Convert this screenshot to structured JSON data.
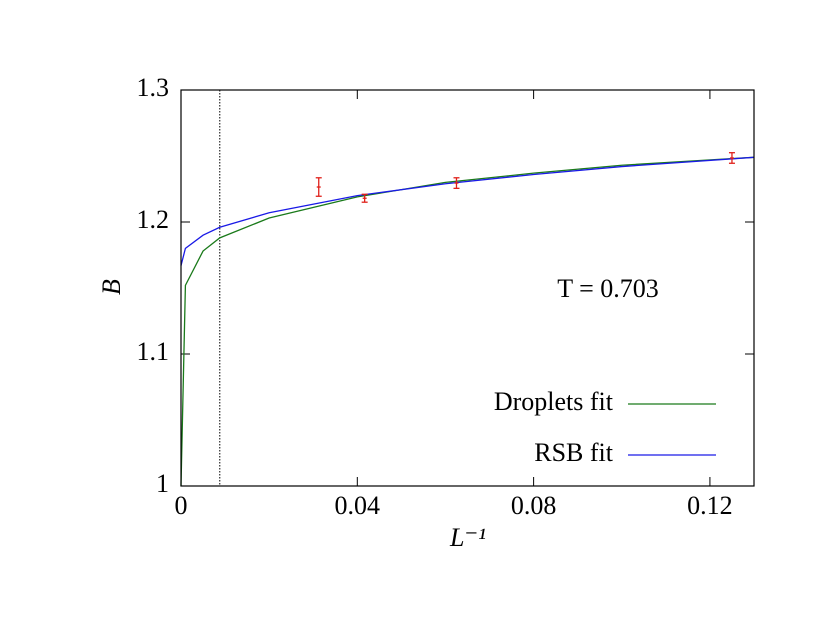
{
  "chart_data": {
    "type": "line",
    "x_label": "L⁻¹",
    "y_label": "B",
    "annotation": "T = 0.703",
    "xlim": [
      0,
      0.13
    ],
    "ylim": [
      1,
      1.3
    ],
    "xticks": [
      0,
      0.04,
      0.08,
      0.12
    ],
    "yticks": [
      1,
      1.1,
      1.2,
      1.3
    ],
    "x": [
      0,
      0.001,
      0.005,
      0.0088,
      0.02,
      0.04,
      0.06,
      0.08,
      0.1,
      0.13
    ],
    "series": [
      {
        "name": "Droplets fit",
        "color": "#1a7a1a",
        "values": [
          1.0,
          1.152,
          1.178,
          1.188,
          1.203,
          1.219,
          1.23,
          1.237,
          1.243,
          1.249
        ]
      },
      {
        "name": "RSB fit",
        "color": "#1a1ae6",
        "values": [
          1.167,
          1.18,
          1.19,
          1.196,
          1.207,
          1.22,
          1.229,
          1.236,
          1.242,
          1.249
        ]
      }
    ],
    "points": {
      "color": "#e0201a",
      "x": [
        0.03125,
        0.041667,
        0.0625,
        0.125
      ],
      "values": [
        1.2265,
        1.218,
        1.2295,
        1.2485
      ],
      "errors": [
        0.007,
        0.003,
        0.004,
        0.004
      ]
    },
    "vline": 0.0088
  }
}
